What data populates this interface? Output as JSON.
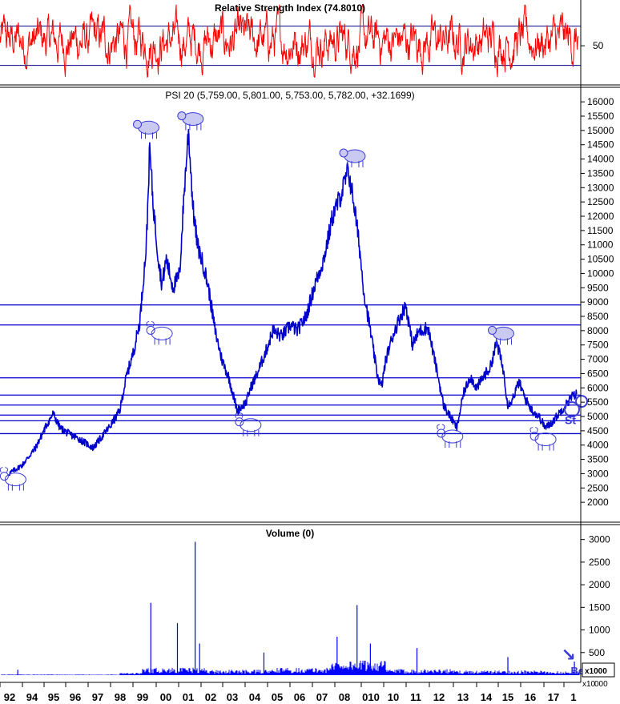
{
  "colors": {
    "background": "#ffffff",
    "price_line": "#0000cc",
    "support_lines": "#0000cc",
    "rsi_line": "#ff0000",
    "rsi_band": "#000080",
    "volume_bars": "#0000ff",
    "axis": "#000000",
    "icons": "#3b3bd6"
  },
  "chart_data": [
    {
      "type": "line",
      "panel": "rsi",
      "title": "Relative Strength Index (74.8010)",
      "value": 74.801,
      "y_ticks": [
        "50"
      ],
      "bands": [
        70,
        30
      ],
      "ylim": [
        15,
        95
      ],
      "series": [
        {
          "values_description_omitted": true
        }
      ]
    },
    {
      "type": "line",
      "panel": "price",
      "title": "PSI 20 (5,759.00, 5,801.00, 5,753.00, 5,782.00, +32.1699)",
      "ylim": [
        1500,
        16200
      ],
      "y_ticks": [
        "16000",
        "15500",
        "15000",
        "14500",
        "14000",
        "13500",
        "13000",
        "12500",
        "12000",
        "11500",
        "11000",
        "10500",
        "10000",
        "9500",
        "9000",
        "8500",
        "8000",
        "7500",
        "7000",
        "6500",
        "6000",
        "5500",
        "5000",
        "4500",
        "4000",
        "3500",
        "3000",
        "2500",
        "2000"
      ],
      "x": [
        1992.0,
        1992.6,
        1993.2,
        1993.7,
        1994.0,
        1994.3,
        1994.7,
        1995.2,
        1995.8,
        1996.2,
        1996.6,
        1997.0,
        1997.3,
        1997.6,
        1997.9,
        1998.2,
        1998.35,
        1998.5,
        1998.7,
        1998.9,
        1999.1,
        1999.4,
        1999.7,
        1999.9,
        2000.1,
        2000.3,
        2000.5,
        2000.8,
        2001.0,
        2001.3,
        2001.6,
        2001.9,
        2002.3,
        2002.7,
        2002.9,
        2003.2,
        2003.6,
        2003.9,
        2004.3,
        2004.7,
        2005.0,
        2005.4,
        2005.8,
        2006.2,
        2006.6,
        2007.0,
        2007.3,
        2007.55,
        2007.8,
        2008.0,
        2008.3,
        2008.6,
        2008.8,
        2009.0,
        2009.3,
        2009.6,
        2009.9,
        2010.2,
        2010.5,
        2010.9,
        2011.3,
        2011.6,
        2011.9,
        2012.2,
        2012.5,
        2012.8,
        2013.1,
        2013.4,
        2013.7,
        2014.0,
        2014.3,
        2014.5,
        2014.7,
        2015.0,
        2015.3,
        2015.6,
        2015.9,
        2016.2,
        2016.5,
        2016.8,
        2017.1,
        2017.4,
        2017.6
      ],
      "series": [
        {
          "values": [
            3000,
            3300,
            3900,
            4700,
            5100,
            4600,
            4400,
            4200,
            3900,
            4300,
            4700,
            5200,
            6400,
            7200,
            8300,
            11000,
            14400,
            12500,
            10800,
            9600,
            10500,
            9500,
            10000,
            12800,
            15000,
            12300,
            11000,
            10200,
            9500,
            8000,
            7000,
            6400,
            5200,
            5500,
            6000,
            6500,
            7300,
            8000,
            7800,
            8200,
            8000,
            8500,
            9600,
            10500,
            12000,
            12800,
            13600,
            12500,
            11000,
            9400,
            8000,
            6500,
            6000,
            7000,
            7800,
            8400,
            8900,
            7500,
            8000,
            8100,
            6600,
            5400,
            5000,
            4600,
            5800,
            6400,
            6000,
            6400,
            6700,
            7600,
            6600,
            5400,
            5600,
            6200,
            5600,
            5200,
            5000,
            4600,
            4800,
            5100,
            5400,
            5700,
            5782
          ]
        }
      ],
      "support_levels": [
        8900,
        8200,
        6350,
        5750,
        5400,
        5050,
        4850,
        4400
      ],
      "annotations": {
        "bear_icons": [
          {
            "x": 1998.3,
            "y": 15100
          },
          {
            "x": 2000.3,
            "y": 15400
          },
          {
            "x": 2007.6,
            "y": 14100
          },
          {
            "x": 2014.3,
            "y": 7900
          }
        ],
        "bull_icons": [
          {
            "x": 1992.3,
            "y": 2800
          },
          {
            "x": 1998.9,
            "y": 7900
          },
          {
            "x": 2002.9,
            "y": 4700
          },
          {
            "x": 2012.0,
            "y": 4300
          },
          {
            "x": 2016.2,
            "y": 4200
          }
        ],
        "arrow": {
          "x": 2017.0,
          "glyph": "↘"
        },
        "partial_texts": [
          "St",
          "Bear"
        ]
      }
    },
    {
      "type": "bar",
      "panel": "volume",
      "title": "Volume (0)",
      "y_ticks": [
        "3000",
        "2500",
        "2000",
        "1500",
        "1000",
        "500"
      ],
      "ylim": [
        0,
        3100
      ],
      "unit_label": "x1000",
      "unit_label_sub": "x10",
      "unit_label_tail": "000",
      "spikes": [
        {
          "x": 1992.4,
          "v": 120
        },
        {
          "x": 1998.4,
          "v": 1600
        },
        {
          "x": 1999.6,
          "v": 1150
        },
        {
          "x": 2000.4,
          "v": 2950
        },
        {
          "x": 2000.6,
          "v": 700
        },
        {
          "x": 2003.5,
          "v": 500
        },
        {
          "x": 2006.8,
          "v": 850
        },
        {
          "x": 2007.7,
          "v": 1550
        },
        {
          "x": 2008.3,
          "v": 700
        },
        {
          "x": 2010.4,
          "v": 600
        },
        {
          "x": 2014.5,
          "v": 400
        },
        {
          "x": 2017.5,
          "v": 300
        }
      ]
    }
  ],
  "x_axis": {
    "labels": [
      "92",
      "94",
      "95",
      "96",
      "97",
      "98",
      "99",
      "00",
      "01",
      "02",
      "03",
      "04",
      "05",
      "06",
      "07",
      "08",
      "0810",
      "10",
      "11",
      "12",
      "13",
      "14",
      "15",
      "16",
      "17",
      "1"
    ],
    "label_text": [
      "92",
      "94",
      "95",
      "96",
      "97",
      "98",
      "99",
      "00",
      "01",
      "02",
      "03",
      "04",
      "05",
      "06",
      "07",
      "08",
      "010",
      "10",
      "11",
      "12",
      "13",
      "14",
      "15",
      "16",
      "17",
      "1"
    ]
  }
}
